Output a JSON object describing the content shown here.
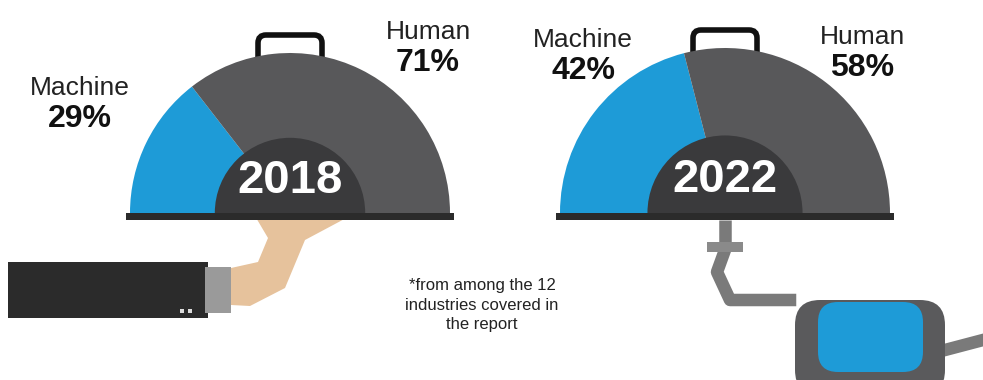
{
  "chart_data": [
    {
      "type": "pie",
      "title": "2018",
      "categories": [
        "Machine",
        "Human"
      ],
      "values": [
        29,
        71
      ],
      "value_labels": [
        "29%",
        "71%"
      ],
      "colors": [
        "#1e9bd7",
        "#58585a"
      ],
      "data_labels": true
    },
    {
      "type": "pie",
      "title": "2022",
      "categories": [
        "Machine",
        "Human"
      ],
      "values": [
        42,
        58
      ],
      "value_labels": [
        "42%",
        "58%"
      ],
      "colors": [
        "#1e9bd7",
        "#58585a"
      ],
      "data_labels": true
    }
  ],
  "footnote": "*from among the 12 industries covered in the report"
}
